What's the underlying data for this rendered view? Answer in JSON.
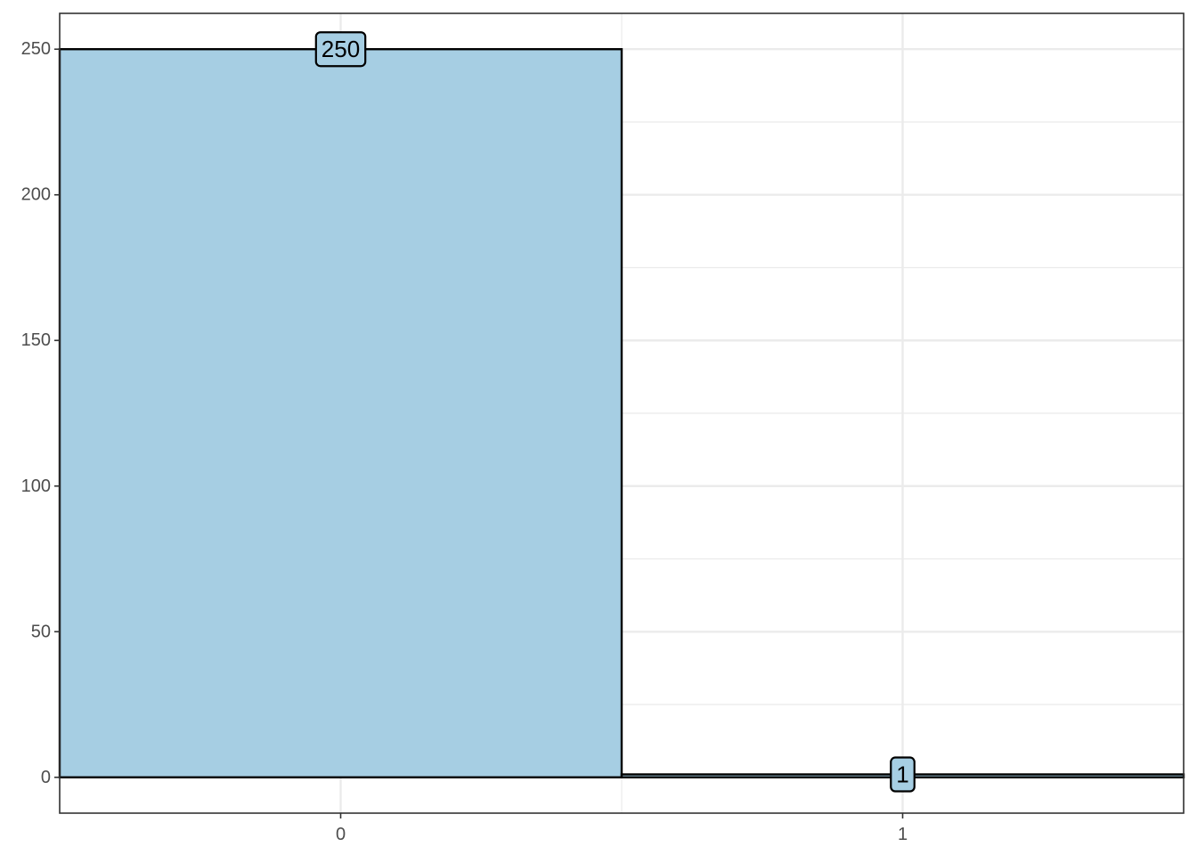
{
  "chart_data": {
    "type": "bar",
    "title": "",
    "xlabel": "",
    "ylabel": "",
    "categories": [
      "0",
      "1"
    ],
    "values": [
      250,
      1
    ],
    "data_labels": [
      "250",
      "1"
    ],
    "xlim": [
      -0.5,
      1.5
    ],
    "ylim": [
      -12.3,
      262.3
    ],
    "y_ticks": [
      0,
      50,
      100,
      150,
      200,
      250
    ],
    "y_tick_labels": [
      "0",
      "50",
      "100",
      "150",
      "200",
      "250"
    ],
    "y_minor_ticks": [
      25,
      75,
      125,
      175,
      225
    ],
    "x_tick_labels": [
      "0",
      "1"
    ],
    "bar_fill": "#a6cee3",
    "bar_outline": "#000000",
    "grid": true,
    "grid_color": "#ebebeb",
    "legend": "none"
  }
}
